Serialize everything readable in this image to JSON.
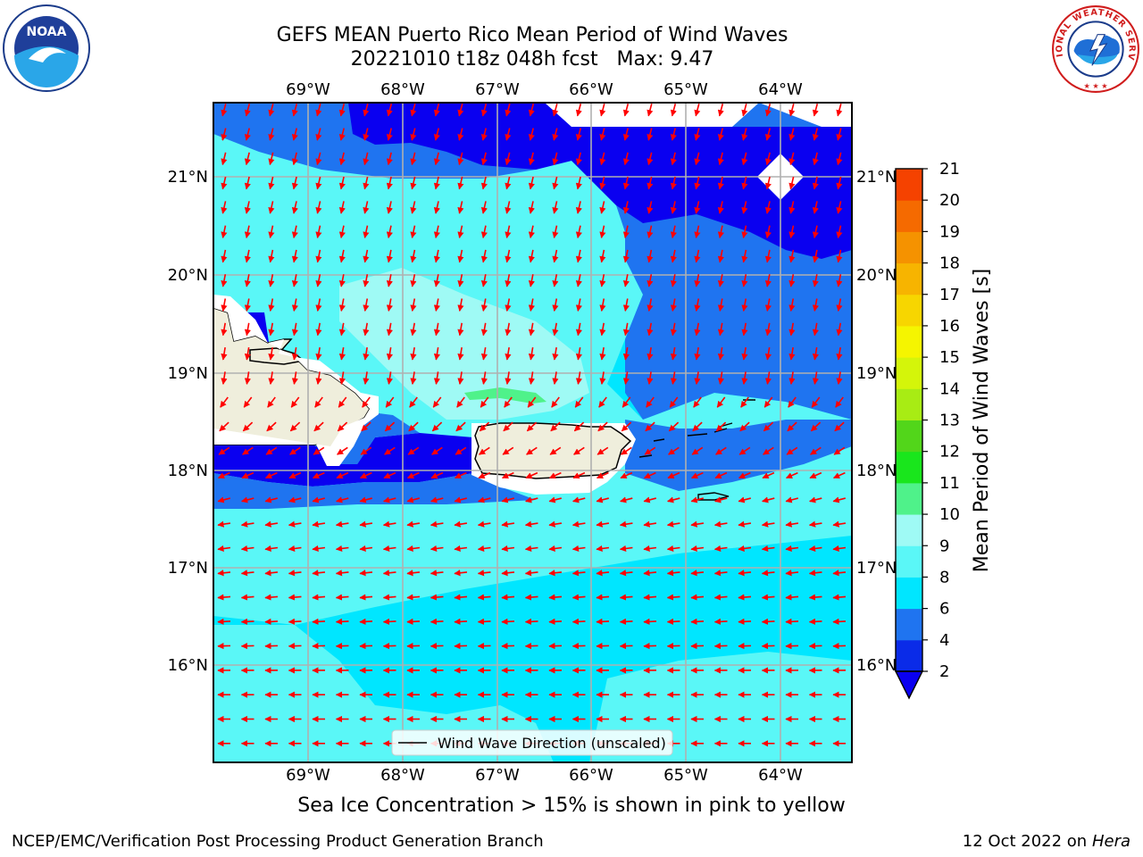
{
  "title_line1": "GEFS MEAN Puerto Rico Mean Period of Wind Waves",
  "title_line2": "20221010 t18z 048h fcst   Max: 9.47",
  "logos": {
    "left": "NOAA",
    "right": "NATIONAL WEATHER SERVICE"
  },
  "lon_labels": [
    "69°W",
    "68°W",
    "67°W",
    "66°W",
    "65°W",
    "64°W"
  ],
  "lat_labels": [
    "21°N",
    "20°N",
    "19°N",
    "18°N",
    "17°N",
    "16°N"
  ],
  "legend_label": "Wind Wave Direction (unscaled)",
  "colorbar": {
    "label": "Mean Period of Wind Waves [s]",
    "ticks": [
      "2",
      "4",
      "6",
      "8",
      "9",
      "10",
      "11",
      "12",
      "13",
      "14",
      "15",
      "16",
      "17",
      "18",
      "19",
      "20",
      "21"
    ],
    "colors": [
      "#0a2be8",
      "#1f74f0",
      "#00e6ff",
      "#5af7f7",
      "#9ffaf5",
      "#4ff28a",
      "#19e61c",
      "#52d61a",
      "#a8ec14",
      "#d4f50a",
      "#f5f500",
      "#f7d600",
      "#f7b400",
      "#f59200",
      "#f56a00",
      "#f54200",
      "#f51c00"
    ],
    "under_color": "#0a00f0"
  },
  "caption": "Sea Ice Concentration > 15% is shown in pink to yellow",
  "footer_left": "NCEP/EMC/Verification Post Processing Product Generation Branch",
  "footer_right_prefix": "12 Oct 2022 on ",
  "footer_right_host": "Hera",
  "map_colors": {
    "deep_blue": "#0a00f0",
    "blue": "#1f74f0",
    "cyan": "#00e6ff",
    "light_cyan": "#5af7f7",
    "pale_cyan": "#9ffaf5",
    "green": "#4ff28a",
    "land": "#efeedc",
    "arrow": "#ff0000",
    "grid": "#b0b0b0"
  }
}
